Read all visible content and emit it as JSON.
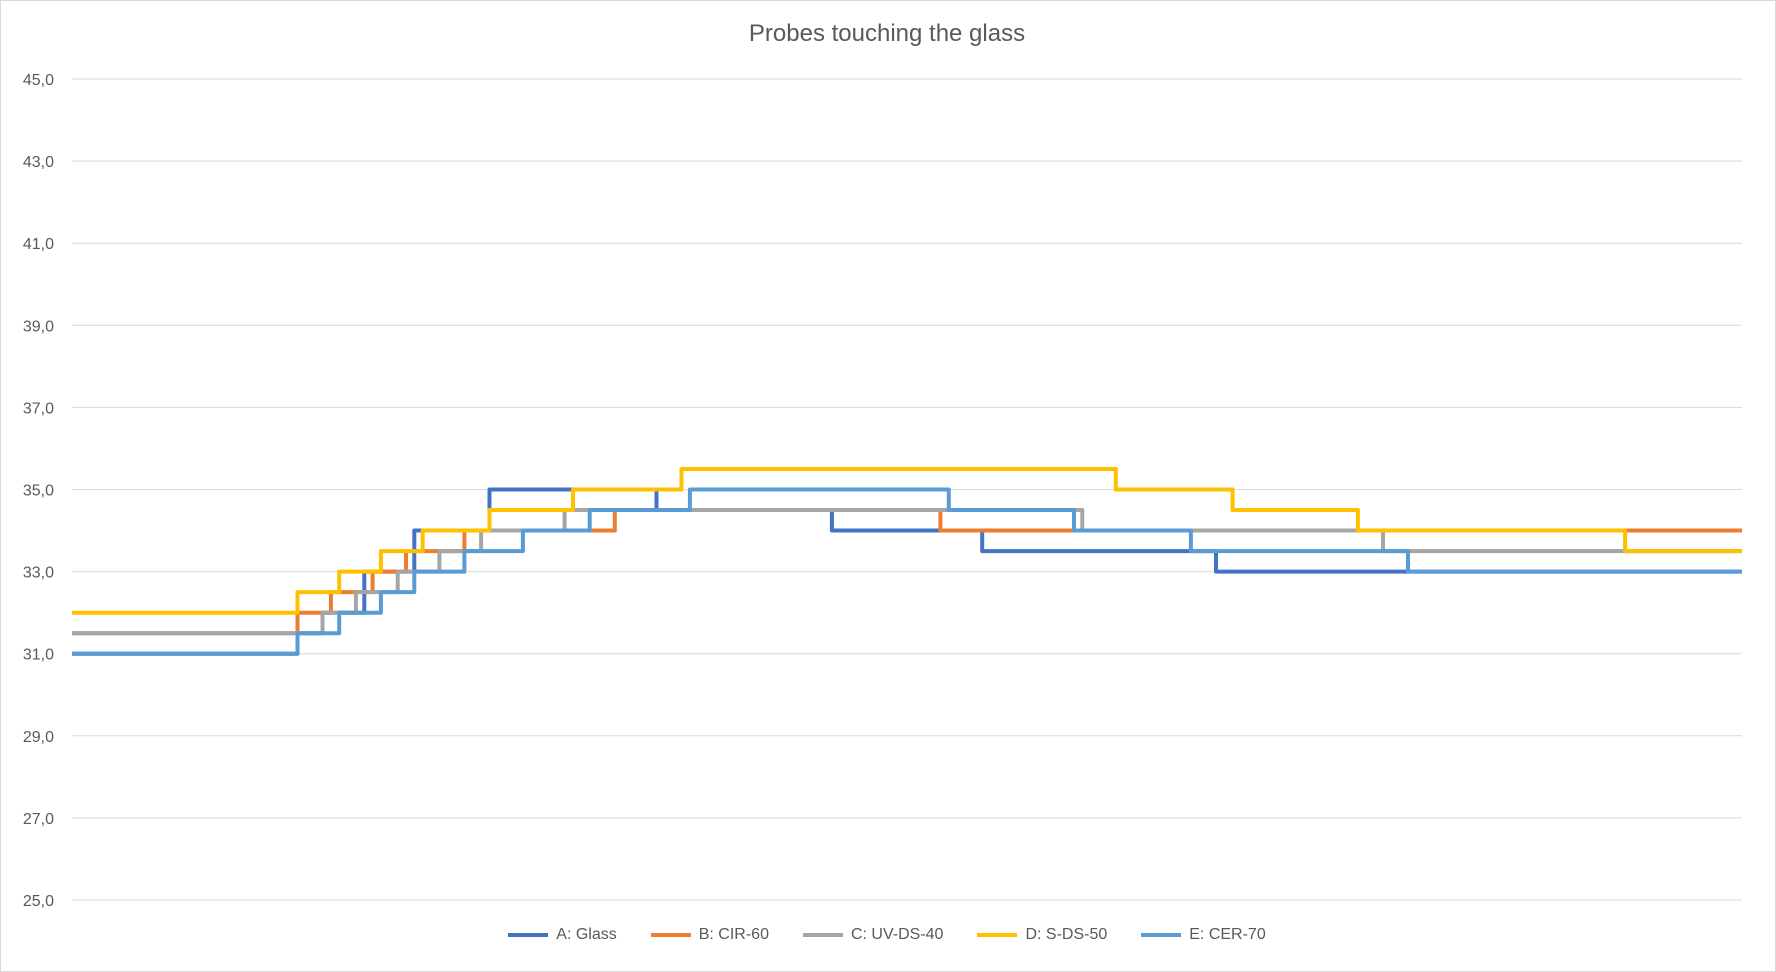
{
  "chart_data": {
    "type": "line",
    "title": "Probes touching the glass",
    "xlabel": "",
    "ylabel": "",
    "ylim": [
      25,
      45
    ],
    "yticks": [
      "25,0",
      "27,0",
      "29,0",
      "31,0",
      "33,0",
      "35,0",
      "37,0",
      "39,0",
      "41,0",
      "43,0",
      "45,0"
    ],
    "xlim": [
      0,
      100
    ],
    "grid": true,
    "legend_position": "bottom",
    "series": [
      {
        "name": "A: Glass",
        "color": "#4472C4",
        "x": [
          0,
          13.5,
          13.5,
          15.0,
          15.0,
          17.5,
          17.5,
          20.5,
          20.5,
          25.0,
          25.0,
          35.0,
          35.0,
          45.5,
          45.5,
          54.5,
          54.5,
          68.5,
          68.5,
          80.5,
          80.5,
          100
        ],
        "y": [
          31.0,
          31.0,
          31.5,
          31.5,
          32.0,
          32.0,
          33.0,
          33.0,
          34.0,
          34.0,
          35.0,
          35.0,
          34.5,
          34.5,
          34.0,
          34.0,
          33.5,
          33.5,
          33.0,
          33.0,
          33.0,
          33.0
        ]
      },
      {
        "name": "B: CIR-60",
        "color": "#ED7D31",
        "x": [
          0,
          13.5,
          13.5,
          15.5,
          15.5,
          18.0,
          18.0,
          20.0,
          20.0,
          23.5,
          23.5,
          32.5,
          32.5,
          52.0,
          52.0,
          59.0,
          59.0,
          100
        ],
        "y": [
          31.5,
          31.5,
          32.0,
          32.0,
          32.5,
          32.5,
          33.0,
          33.0,
          33.5,
          33.5,
          34.0,
          34.0,
          34.5,
          34.5,
          34.0,
          34.0,
          34.0,
          34.0
        ]
      },
      {
        "name": "C: UV-DS-40",
        "color": "#A5A5A5",
        "x": [
          0,
          15.0,
          15.0,
          17.0,
          17.0,
          19.5,
          19.5,
          22.0,
          22.0,
          24.5,
          24.5,
          29.5,
          29.5,
          60.5,
          60.5,
          78.5,
          78.5,
          100
        ],
        "y": [
          31.5,
          31.5,
          32.0,
          32.0,
          32.5,
          32.5,
          33.0,
          33.0,
          33.5,
          33.5,
          34.0,
          34.0,
          34.5,
          34.5,
          34.0,
          34.0,
          33.5,
          33.5
        ]
      },
      {
        "name": "D: S-DS-50",
        "color": "#FFC000",
        "x": [
          0,
          13.5,
          13.5,
          16.0,
          16.0,
          18.5,
          18.5,
          21.0,
          21.0,
          25.0,
          25.0,
          30.0,
          30.0,
          36.5,
          36.5,
          62.5,
          62.5,
          69.5,
          69.5,
          77.0,
          77.0,
          93.0,
          93.0,
          100
        ],
        "y": [
          32.0,
          32.0,
          32.5,
          32.5,
          33.0,
          33.0,
          33.5,
          33.5,
          34.0,
          34.0,
          34.5,
          34.5,
          35.0,
          35.0,
          35.5,
          35.5,
          35.0,
          35.0,
          34.5,
          34.5,
          34.0,
          34.0,
          33.5,
          33.5
        ]
      },
      {
        "name": "E: CER-70",
        "color": "#5B9BD5",
        "x": [
          0,
          13.5,
          13.5,
          16.0,
          16.0,
          18.5,
          18.5,
          20.5,
          20.5,
          23.5,
          23.5,
          27.0,
          27.0,
          31.0,
          31.0,
          37.0,
          37.0,
          52.5,
          52.5,
          60.0,
          60.0,
          67.0,
          67.0,
          80.0,
          80.0,
          100
        ],
        "y": [
          31.0,
          31.0,
          31.5,
          31.5,
          32.0,
          32.0,
          32.5,
          32.5,
          33.0,
          33.0,
          33.5,
          33.5,
          34.0,
          34.0,
          34.5,
          34.5,
          35.0,
          35.0,
          34.5,
          34.5,
          34.0,
          34.0,
          33.5,
          33.5,
          33.0,
          33.0
        ]
      }
    ]
  }
}
